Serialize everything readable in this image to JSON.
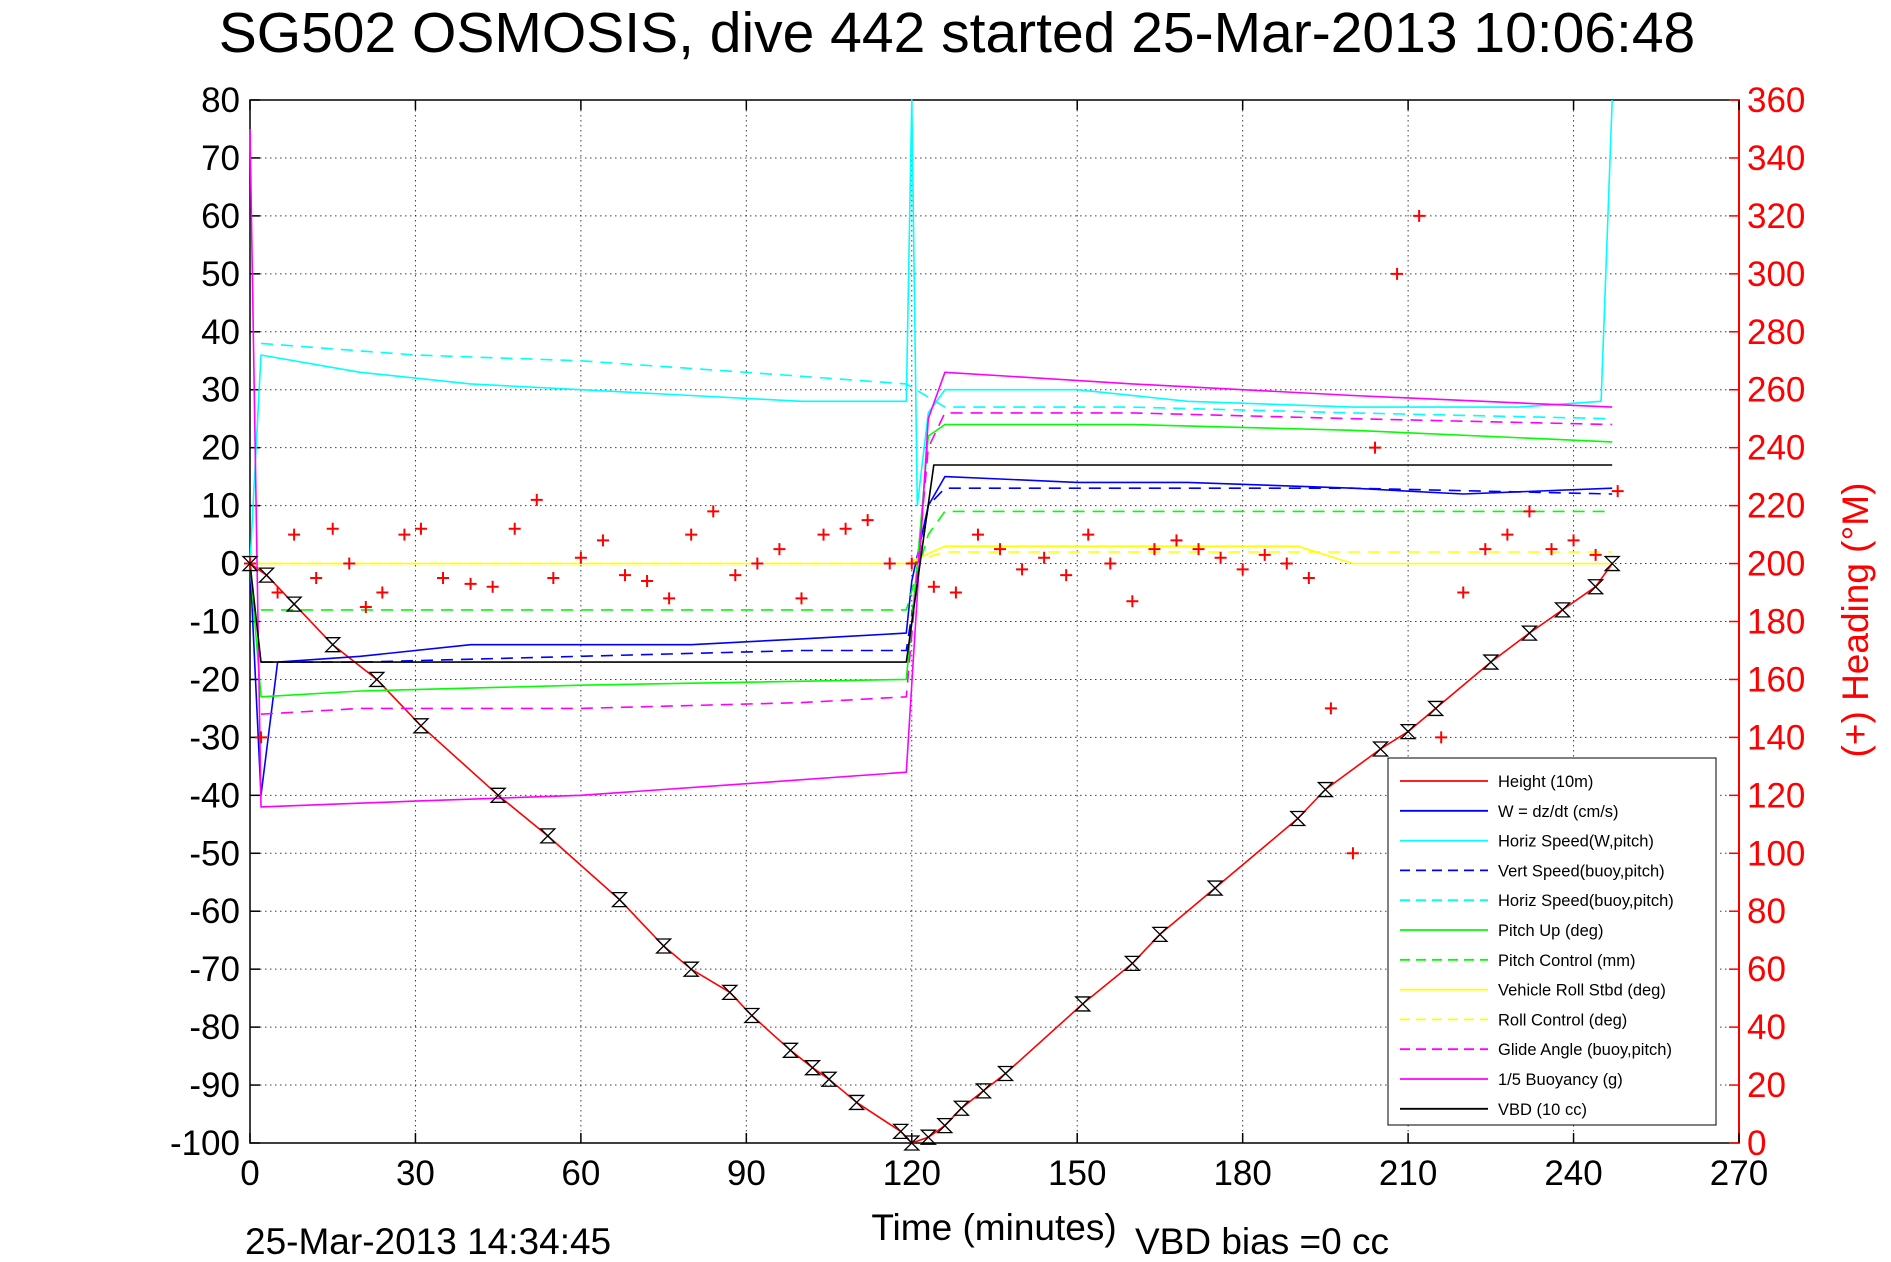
{
  "chart_data": {
    "type": "line",
    "title": "SG502 OSMOSIS, dive 442 started 25-Mar-2013 10:06:48",
    "xlabel": "Time (minutes)",
    "ylabel": "",
    "ylabel_right": "(+) Heading (°M)",
    "xlim": [
      0,
      270
    ],
    "ylim": [
      -100,
      80
    ],
    "ylim_right": [
      0,
      360
    ],
    "x_ticks": [
      "0",
      "30",
      "60",
      "90",
      "120",
      "150",
      "180",
      "210",
      "240",
      "270"
    ],
    "y_ticks": [
      "80",
      "70",
      "60",
      "50",
      "40",
      "30",
      "20",
      "10",
      "0",
      "-10",
      "-20",
      "-30",
      "-40",
      "-50",
      "-60",
      "-70",
      "-80",
      "-90",
      "-100"
    ],
    "y_ticks_right": [
      "360",
      "340",
      "320",
      "300",
      "280",
      "260",
      "240",
      "220",
      "200",
      "180",
      "160",
      "140",
      "120",
      "100",
      "80",
      "60",
      "40",
      "20",
      "0"
    ],
    "grid": true,
    "legend_position": "bottom-right",
    "footer_left": "25-Mar-2013 14:34:45",
    "footer_right": "VBD bias =0 cc",
    "series": [
      {
        "name": "Height (10m)",
        "color": "#ff0000",
        "style": "solid",
        "x": [
          0,
          3,
          8,
          15,
          23,
          31,
          45,
          54,
          67,
          75,
          80,
          87,
          91,
          98,
          102,
          105,
          110,
          118,
          120,
          123,
          126,
          129,
          133,
          137,
          151,
          160,
          165,
          175,
          190,
          195,
          205,
          210,
          215,
          225,
          232,
          238,
          244,
          247
        ],
        "y": [
          0,
          -2,
          -7,
          -14,
          -20,
          -28,
          -40,
          -47,
          -58,
          -66,
          -70,
          -74,
          -78,
          -84,
          -87,
          -89,
          -93,
          -98,
          -100,
          -99,
          -97,
          -94,
          -91,
          -88,
          -76,
          -69,
          -64,
          -56,
          -44,
          -39,
          -32,
          -29,
          -25,
          -17,
          -12,
          -8,
          -4,
          0
        ]
      },
      {
        "name": "W = dz/dt (cm/s)",
        "color": "#0000ff",
        "style": "solid",
        "x": [
          0,
          2,
          5,
          20,
          40,
          60,
          80,
          100,
          119,
          120,
          123,
          126,
          150,
          170,
          200,
          220,
          247
        ],
        "y": [
          0,
          -40,
          -17,
          -16,
          -14,
          -14,
          -14,
          -13,
          -12,
          -3,
          10,
          15,
          14,
          14,
          13,
          12,
          13
        ]
      },
      {
        "name": "Horiz Speed(W,pitch)",
        "color": "#00ffff",
        "style": "solid",
        "x": [
          0,
          2,
          20,
          40,
          60,
          80,
          100,
          119,
          120,
          121,
          123,
          126,
          150,
          170,
          200,
          230,
          245,
          247
        ],
        "y": [
          0,
          36,
          33,
          31,
          30,
          29,
          28,
          28,
          80,
          10,
          26,
          30,
          30,
          28,
          27,
          27,
          28,
          80
        ]
      },
      {
        "name": "Vert Speed(buoy,pitch)",
        "color": "#0000ff",
        "style": "dashed",
        "x": [
          2,
          20,
          60,
          100,
          119,
          123,
          126,
          200,
          247
        ],
        "y": [
          -17,
          -17,
          -16,
          -15,
          -15,
          10,
          13,
          13,
          12
        ]
      },
      {
        "name": "Horiz Speed(buoy,pitch)",
        "color": "#00ffff",
        "style": "dashed",
        "x": [
          2,
          30,
          60,
          90,
          119,
          126,
          160,
          200,
          247
        ],
        "y": [
          38,
          36,
          35,
          33,
          31,
          27,
          27,
          26,
          25
        ]
      },
      {
        "name": "Pitch Up (deg)",
        "color": "#00ff00",
        "style": "solid",
        "x": [
          0,
          2,
          20,
          60,
          119,
          121,
          123,
          126,
          160,
          200,
          247
        ],
        "y": [
          0,
          -23,
          -22,
          -21,
          -20,
          0,
          22,
          24,
          24,
          23,
          21
        ]
      },
      {
        "name": "Pitch Control (mm)",
        "color": "#00ff00",
        "style": "dashed",
        "x": [
          2,
          119,
          123,
          126,
          247
        ],
        "y": [
          -8,
          -8,
          5,
          9,
          9
        ]
      },
      {
        "name": "Vehicle Roll Stbd (deg)",
        "color": "#ffff00",
        "style": "solid",
        "x": [
          0,
          119,
          126,
          190,
          200,
          247
        ],
        "y": [
          0,
          0,
          3,
          3,
          0,
          0
        ]
      },
      {
        "name": "Roll Control (deg)",
        "color": "#ffff00",
        "style": "dashed",
        "x": [
          0,
          119,
          126,
          247
        ],
        "y": [
          0,
          0,
          2,
          2
        ]
      },
      {
        "name": "Glide Angle (buoy,pitch)",
        "color": "#ff00ff",
        "style": "dashed",
        "x": [
          2,
          20,
          60,
          100,
          119,
          123,
          126,
          160,
          200,
          247
        ],
        "y": [
          -26,
          -25,
          -25,
          -24,
          -23,
          20,
          26,
          26,
          25,
          24
        ]
      },
      {
        "name": "1/5 Buoyancy (g)",
        "color": "#ff00ff",
        "style": "solid",
        "x": [
          0,
          2,
          30,
          60,
          90,
          119,
          123,
          126,
          160,
          200,
          247
        ],
        "y": [
          75,
          -42,
          -41,
          -40,
          -38,
          -36,
          25,
          33,
          31,
          29,
          27
        ]
      },
      {
        "name": "VBD (10 cc)",
        "color": "#000000",
        "style": "solid",
        "x": [
          0,
          2,
          119,
          124,
          247
        ],
        "y": [
          0,
          -17,
          -17,
          17,
          17
        ]
      }
    ],
    "heading_series": {
      "name": "(+) Heading (°M)",
      "color": "#ff0000",
      "marker": "+",
      "axis": "right",
      "x": [
        0,
        2,
        5,
        8,
        12,
        15,
        18,
        21,
        24,
        28,
        31,
        35,
        40,
        44,
        48,
        52,
        55,
        60,
        64,
        68,
        72,
        76,
        80,
        84,
        88,
        92,
        96,
        100,
        104,
        108,
        112,
        116,
        120,
        124,
        128,
        132,
        136,
        140,
        144,
        148,
        152,
        156,
        160,
        164,
        168,
        172,
        176,
        180,
        184,
        188,
        192,
        196,
        200,
        204,
        208,
        212,
        216,
        220,
        224,
        228,
        232,
        236,
        240,
        244,
        248
      ],
      "y": [
        200,
        140,
        190,
        210,
        195,
        212,
        200,
        185,
        190,
        210,
        212,
        195,
        193,
        192,
        212,
        222,
        195,
        202,
        208,
        196,
        194,
        188,
        210,
        218,
        196,
        200,
        205,
        188,
        210,
        212,
        215,
        200,
        200,
        192,
        190,
        210,
        205,
        198,
        202,
        196,
        210,
        200,
        187,
        205,
        208,
        205,
        202,
        198,
        203,
        200,
        195,
        150,
        100,
        240,
        300,
        320,
        140,
        190,
        205,
        210,
        218,
        205,
        208,
        203,
        225
      ]
    }
  }
}
